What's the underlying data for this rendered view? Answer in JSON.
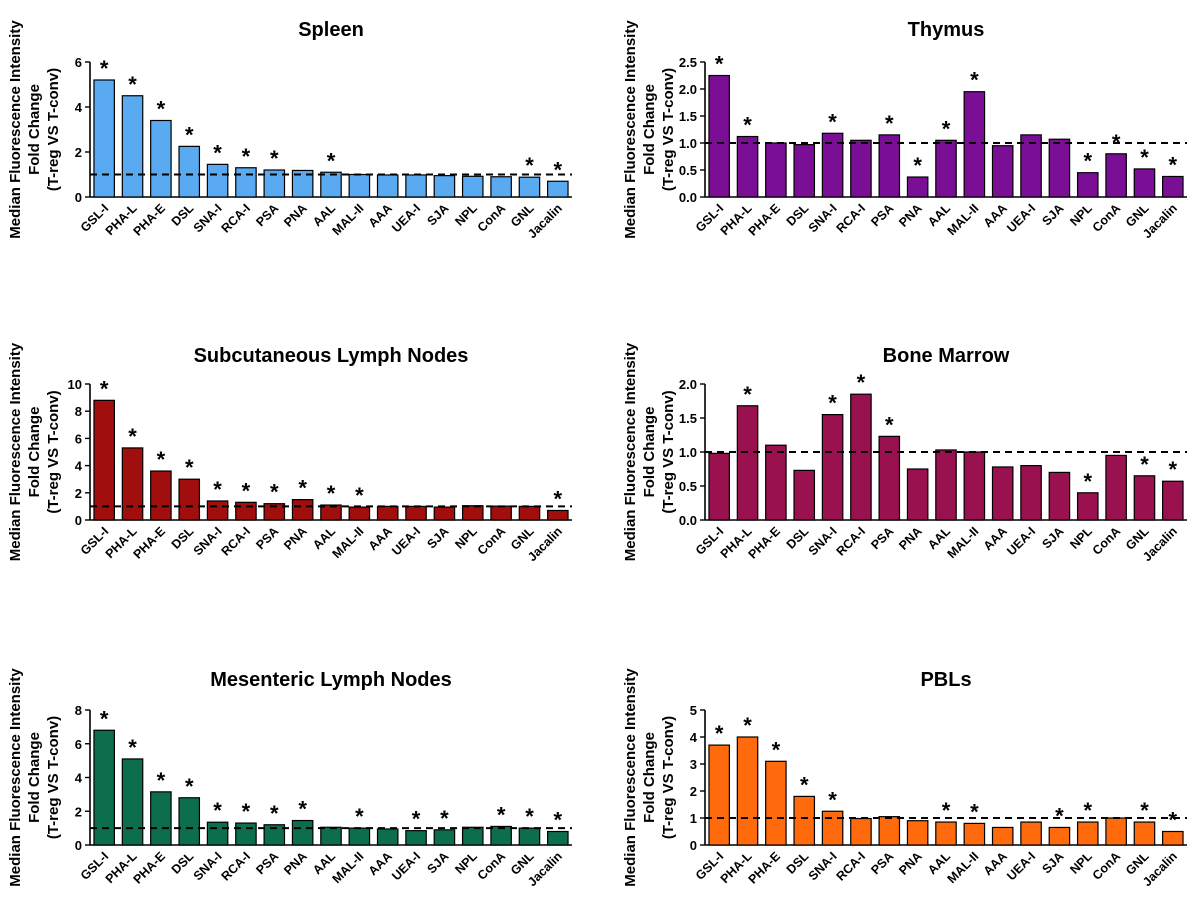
{
  "chart_data": [
    {
      "type": "bar",
      "title": "Spleen",
      "ylabel_lines": [
        "Median Fluorescence Intensity",
        "Fold Change",
        "(T-reg VS T-conv)"
      ],
      "xlabel": "",
      "color": "#5aaaf2",
      "ylim": [
        0,
        6
      ],
      "yticks": [
        0,
        2,
        4,
        6
      ],
      "reference_line": 1.0,
      "categories": [
        "GSL-I",
        "PHA-L",
        "PHA-E",
        "DSL",
        "SNA-I",
        "RCA-I",
        "PSA",
        "PNA",
        "AAL",
        "MAL-II",
        "AAA",
        "UEA-I",
        "SJA",
        "NPL",
        "ConA",
        "GNL",
        "Jacalin"
      ],
      "values": [
        5.2,
        4.5,
        3.4,
        2.25,
        1.45,
        1.3,
        1.2,
        1.18,
        1.1,
        1.0,
        0.98,
        0.98,
        0.95,
        0.92,
        0.9,
        0.88,
        0.7
      ],
      "significant": [
        true,
        true,
        true,
        true,
        true,
        true,
        true,
        false,
        true,
        false,
        false,
        false,
        false,
        false,
        false,
        true,
        true
      ]
    },
    {
      "type": "bar",
      "title": "Thymus",
      "ylabel_lines": [
        "Median Fluorescence Intensity",
        "Fold Change",
        "(T-reg VS T-conv)"
      ],
      "xlabel": "",
      "color": "#7a0f96",
      "ylim": [
        0,
        2.5
      ],
      "yticks": [
        0.0,
        0.5,
        1.0,
        1.5,
        2.0,
        2.5
      ],
      "reference_line": 1.0,
      "categories": [
        "GSL-I",
        "PHA-L",
        "PHA-E",
        "DSL",
        "SNA-I",
        "RCA-I",
        "PSA",
        "PNA",
        "AAL",
        "MAL-II",
        "AAA",
        "UEA-I",
        "SJA",
        "NPL",
        "ConA",
        "GNL",
        "Jacalin"
      ],
      "values": [
        2.25,
        1.12,
        1.0,
        0.97,
        1.18,
        1.05,
        1.15,
        0.37,
        1.05,
        1.95,
        0.95,
        1.15,
        1.07,
        0.45,
        0.8,
        0.52,
        0.38
      ],
      "significant": [
        true,
        true,
        false,
        false,
        true,
        false,
        true,
        true,
        true,
        true,
        false,
        false,
        false,
        true,
        true,
        true,
        true
      ]
    },
    {
      "type": "bar",
      "title": "Subcutaneous Lymph Nodes",
      "ylabel_lines": [
        "Median Fluorescence Intensity",
        "Fold Change",
        "(T-reg VS T-conv)"
      ],
      "xlabel": "",
      "color": "#a10e0e",
      "ylim": [
        0,
        10
      ],
      "yticks": [
        0,
        2,
        4,
        6,
        8,
        10
      ],
      "reference_line": 1.0,
      "categories": [
        "GSL-I",
        "PHA-L",
        "PHA-E",
        "DSL",
        "SNA-I",
        "RCA-I",
        "PSA",
        "PNA",
        "AAL",
        "MAL-II",
        "AAA",
        "UEA-I",
        "SJA",
        "NPL",
        "ConA",
        "GNL",
        "Jacalin"
      ],
      "values": [
        8.8,
        5.3,
        3.6,
        3.0,
        1.4,
        1.3,
        1.2,
        1.5,
        1.1,
        0.95,
        1.0,
        1.0,
        0.95,
        1.05,
        1.02,
        1.0,
        0.7
      ],
      "significant": [
        true,
        true,
        true,
        true,
        true,
        true,
        true,
        true,
        true,
        true,
        false,
        false,
        false,
        false,
        false,
        false,
        true
      ]
    },
    {
      "type": "bar",
      "title": "Bone Marrow",
      "ylabel_lines": [
        "Median Fluorescence Intensity",
        "Fold Change",
        "(T-reg VS T-conv)"
      ],
      "xlabel": "",
      "color": "#9a1150",
      "ylim": [
        0,
        2.0
      ],
      "yticks": [
        0.0,
        0.5,
        1.0,
        1.5,
        2.0
      ],
      "reference_line": 1.0,
      "categories": [
        "GSL-I",
        "PHA-L",
        "PHA-E",
        "DSL",
        "SNA-I",
        "RCA-I",
        "PSA",
        "PNA",
        "AAL",
        "MAL-II",
        "AAA",
        "UEA-I",
        "SJA",
        "NPL",
        "ConA",
        "GNL",
        "Jacalin"
      ],
      "values": [
        0.98,
        1.68,
        1.1,
        0.73,
        1.55,
        1.85,
        1.23,
        0.75,
        1.03,
        1.0,
        0.78,
        0.8,
        0.7,
        0.4,
        0.95,
        0.65,
        0.57
      ],
      "significant": [
        false,
        true,
        false,
        false,
        true,
        true,
        true,
        false,
        false,
        false,
        false,
        false,
        false,
        true,
        false,
        true,
        true
      ]
    },
    {
      "type": "bar",
      "title": "Mesenteric Lymph Nodes",
      "ylabel_lines": [
        "Median Fluorescence Intensity",
        "Fold Change",
        "(T-reg VS T-conv)"
      ],
      "xlabel": "",
      "color": "#0d6e4e",
      "ylim": [
        0,
        8
      ],
      "yticks": [
        0,
        2,
        4,
        6,
        8
      ],
      "reference_line": 1.0,
      "categories": [
        "GSL-I",
        "PHA-L",
        "PHA-E",
        "DSL",
        "SNA-I",
        "RCA-I",
        "PSA",
        "PNA",
        "AAL",
        "MAL-II",
        "AAA",
        "UEA-I",
        "SJA",
        "NPL",
        "ConA",
        "GNL",
        "Jacalin"
      ],
      "values": [
        6.8,
        5.1,
        3.15,
        2.8,
        1.35,
        1.3,
        1.2,
        1.45,
        1.05,
        1.0,
        0.95,
        0.85,
        0.9,
        1.05,
        1.1,
        1.0,
        0.8
      ],
      "significant": [
        true,
        true,
        true,
        true,
        true,
        true,
        true,
        true,
        false,
        true,
        false,
        true,
        true,
        false,
        true,
        true,
        true
      ]
    },
    {
      "type": "bar",
      "title": "PBLs",
      "ylabel_lines": [
        "Median Fluorescence Intensity",
        "Fold Change",
        "(T-reg VS T-conv)"
      ],
      "xlabel": "",
      "color": "#ff6a0d",
      "ylim": [
        0,
        5
      ],
      "yticks": [
        0,
        1,
        2,
        3,
        4,
        5
      ],
      "reference_line": 1.0,
      "categories": [
        "GSL-I",
        "PHA-L",
        "PHA-E",
        "DSL",
        "SNA-I",
        "RCA-I",
        "PSA",
        "PNA",
        "AAL",
        "MAL-II",
        "AAA",
        "UEA-I",
        "SJA",
        "NPL",
        "ConA",
        "GNL",
        "Jacalin"
      ],
      "values": [
        3.7,
        4.0,
        3.1,
        1.8,
        1.25,
        0.98,
        1.05,
        0.9,
        0.85,
        0.8,
        0.65,
        0.85,
        0.65,
        0.85,
        1.0,
        0.85,
        0.5
      ],
      "significant": [
        true,
        true,
        true,
        true,
        true,
        false,
        false,
        false,
        true,
        true,
        false,
        false,
        true,
        true,
        false,
        true,
        true
      ]
    }
  ],
  "significance_marker": "*"
}
